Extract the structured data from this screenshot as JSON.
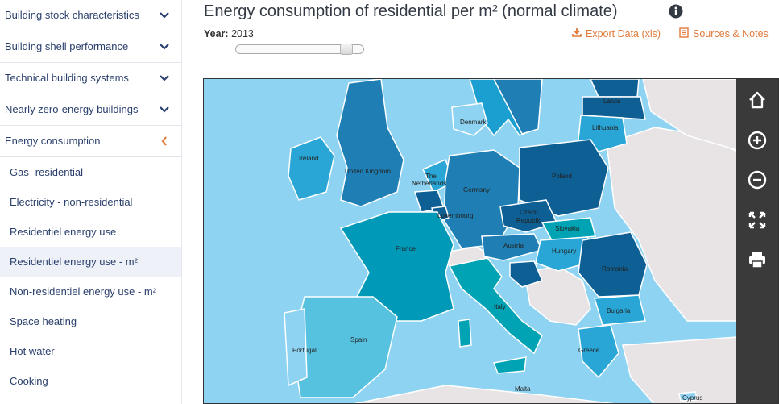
{
  "sidebar": {
    "menu": [
      {
        "label": "Building stock characteristics",
        "chevron": "chevron-down-icon"
      },
      {
        "label": "Building shell performance",
        "chevron": "chevron-down-icon"
      },
      {
        "label": "Technical building systems",
        "chevron": "chevron-down-icon"
      },
      {
        "label": "Nearly zero-energy buildings",
        "chevron": "chevron-down-icon"
      },
      {
        "label": "Energy consumption",
        "chevron": "chevron-left-icon"
      }
    ],
    "submenu": [
      {
        "label": "Gas- residential"
      },
      {
        "label": "Electricity - non-residential"
      },
      {
        "label": "Residentiel energy use"
      },
      {
        "label": "Residentiel energy use - m²",
        "active": true
      },
      {
        "label": "Non-residentiel energy use - m²"
      },
      {
        "label": "Space heating"
      },
      {
        "label": "Hot water"
      },
      {
        "label": "Cooking"
      }
    ]
  },
  "header": {
    "title": "Energy consumption of residential per m² (normal climate)",
    "year_label": "Year:",
    "year_value": "2013",
    "export_label": "Export Data (xls)",
    "sources_label": "Sources & Notes",
    "accent_color": "#e07b3c"
  },
  "map": {
    "sea_color": "#8fd3f2",
    "land_nodata_color": "#e8e4e6",
    "labels": {
      "latvia": "Latvia",
      "lithuania": "Lithuania",
      "denmark": "Denmark",
      "ireland": "Ireland",
      "uk": "United Kingdom",
      "netherlands1": "The",
      "netherlands2": "Netherlands",
      "germany": "Germany",
      "poland": "Poland",
      "luxembourg": "Luxembourg",
      "czech1": "Czech",
      "czech2": "Republic",
      "slovakia": "Slovakia",
      "france": "France",
      "austria": "Austria",
      "hungary": "Hungary",
      "romania": "Romania",
      "italy": "Italy",
      "bulgaria": "Bulgaria",
      "spain": "Spain",
      "portugal": "Portugal",
      "greece": "Greece",
      "malta": "Malta",
      "cyprus": "Cyprus"
    }
  },
  "toolbar": [
    "home-icon",
    "zoom-in-icon",
    "zoom-out-icon",
    "fullscreen-icon",
    "print-icon"
  ]
}
